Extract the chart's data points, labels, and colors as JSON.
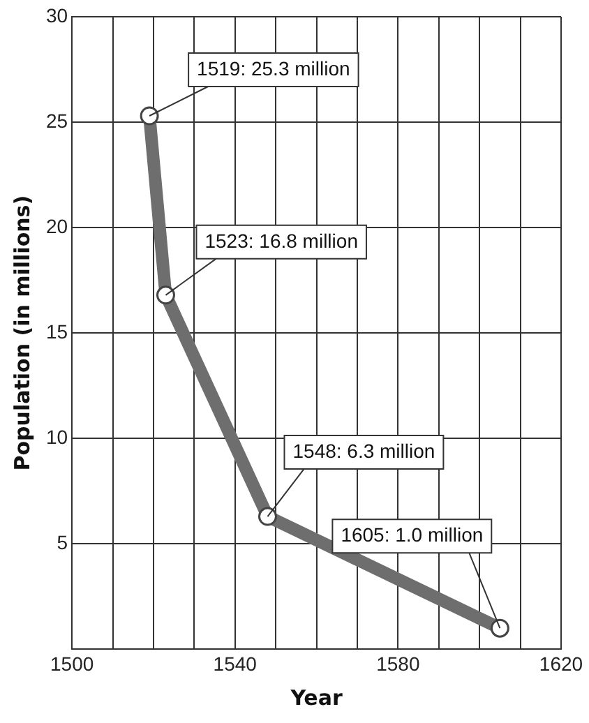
{
  "chart_data": {
    "type": "line",
    "xlabel": "Year",
    "ylabel": "Population (in millions)",
    "x": [
      1519,
      1523,
      1548,
      1605
    ],
    "series": [
      {
        "color": "#6e6e6e",
        "values": [
          25.3,
          16.8,
          6.3,
          1.0
        ]
      }
    ],
    "xlim": [
      1500,
      1620
    ],
    "ylim": [
      0,
      30
    ],
    "xticks": [
      1500,
      {
        "value": 1510,
        "label": null
      },
      {
        "value": 1520,
        "label": null
      },
      {
        "value": 1530,
        "label": null
      },
      1540,
      {
        "value": 1550,
        "label": null
      },
      {
        "value": 1560,
        "label": null
      },
      {
        "value": 1570,
        "label": null
      },
      1580,
      {
        "value": 1590,
        "label": null
      },
      {
        "value": 1600,
        "label": null
      },
      {
        "value": 1610,
        "label": null
      },
      1620
    ],
    "yticks": [
      {
        "value": 0,
        "label": null
      },
      5,
      10,
      15,
      20,
      25,
      30
    ],
    "grid": true,
    "marker": "circle",
    "line_style": "solid",
    "annotations": [
      {
        "text": "1519: 25.3 million",
        "x": 1519,
        "y": 25.3
      },
      {
        "text": "1523: 16.8 million",
        "x": 1523,
        "y": 16.8
      },
      {
        "text": "1548: 6.3 million",
        "x": 1548,
        "y": 6.3
      },
      {
        "text": "1605: 1.0 million",
        "x": 1605,
        "y": 1.0
      }
    ]
  }
}
